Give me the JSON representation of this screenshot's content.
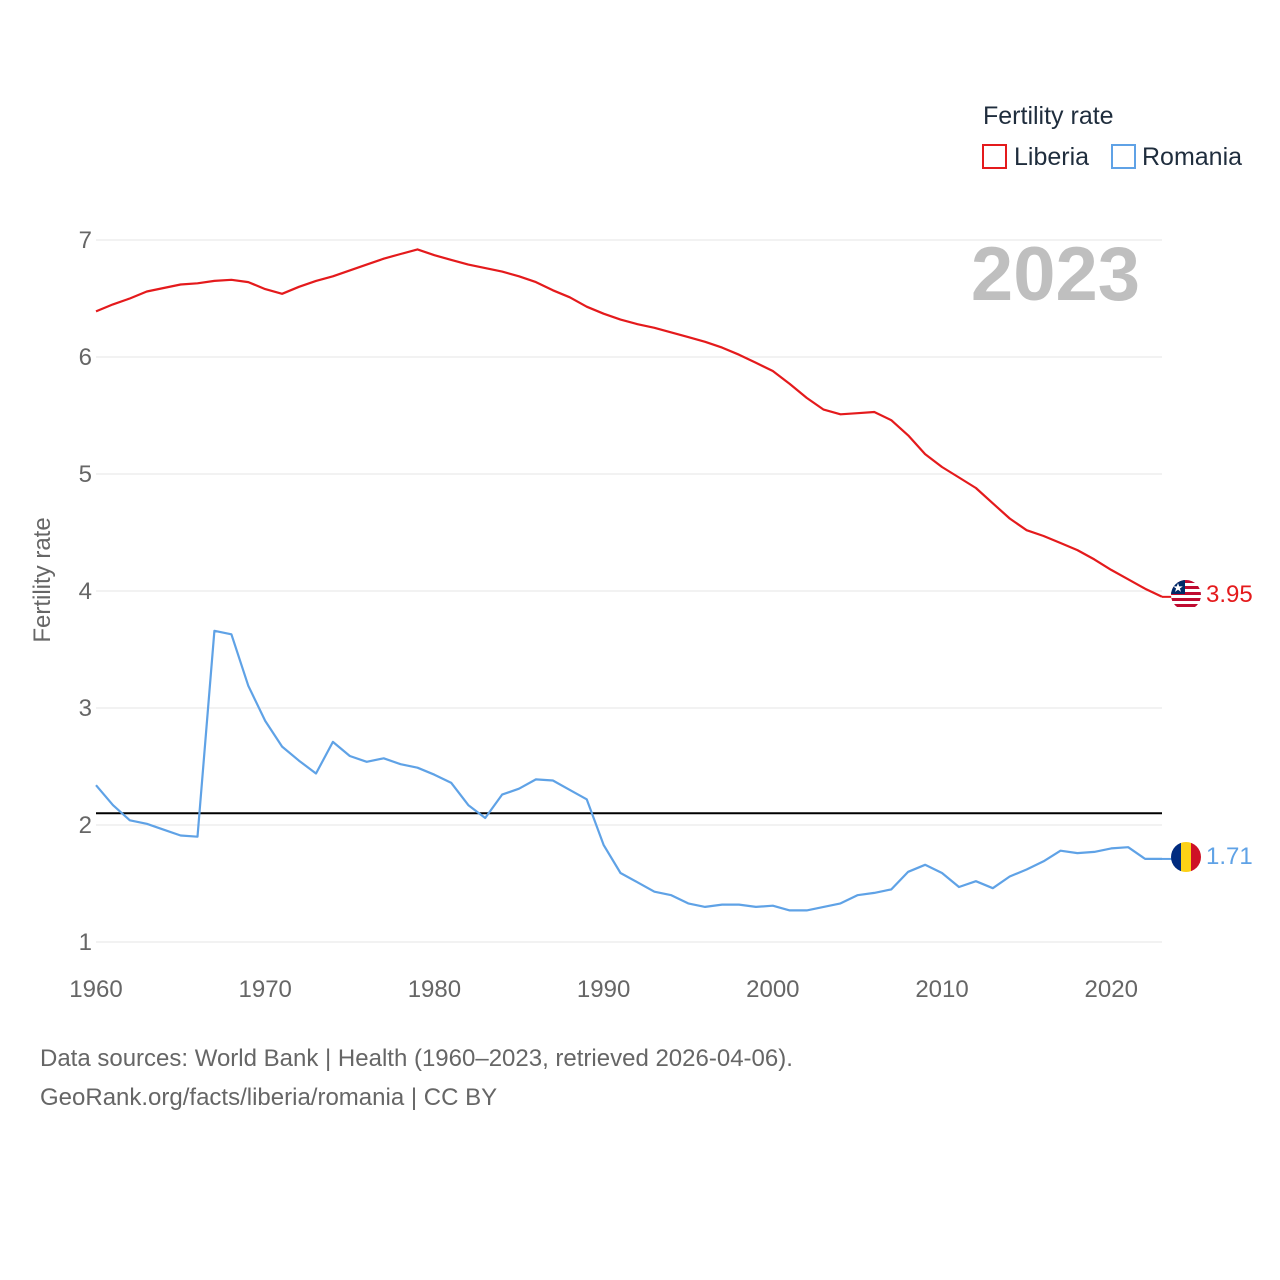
{
  "chart_data": {
    "type": "line",
    "ylabel": "Fertility rate",
    "legend_title": "Fertility rate",
    "legend_position": "top-right",
    "year_label": "2023",
    "ylim": [
      1,
      7
    ],
    "xlim": [
      1960,
      2023
    ],
    "yticks": [
      "1",
      "2",
      "3",
      "4",
      "5",
      "6",
      "7"
    ],
    "xticks": [
      "1960",
      "1970",
      "1980",
      "1990",
      "2000",
      "2010",
      "2020"
    ],
    "grid": true,
    "reference_line": 2.1,
    "x": [
      1960,
      1961,
      1962,
      1963,
      1964,
      1965,
      1966,
      1967,
      1968,
      1969,
      1970,
      1971,
      1972,
      1973,
      1974,
      1975,
      1976,
      1977,
      1978,
      1979,
      1980,
      1981,
      1982,
      1983,
      1984,
      1985,
      1986,
      1987,
      1988,
      1989,
      1990,
      1991,
      1992,
      1993,
      1994,
      1995,
      1996,
      1997,
      1998,
      1999,
      2000,
      2001,
      2002,
      2003,
      2004,
      2005,
      2006,
      2007,
      2008,
      2009,
      2010,
      2011,
      2012,
      2013,
      2014,
      2015,
      2016,
      2017,
      2018,
      2019,
      2020,
      2021,
      2022,
      2023
    ],
    "series": [
      {
        "name": "Liberia",
        "color": "#e41a1c",
        "end_label": "3.95",
        "values": [
          6.39,
          6.45,
          6.5,
          6.56,
          6.59,
          6.62,
          6.63,
          6.65,
          6.66,
          6.64,
          6.58,
          6.54,
          6.6,
          6.65,
          6.69,
          6.74,
          6.79,
          6.84,
          6.88,
          6.92,
          6.87,
          6.83,
          6.79,
          6.76,
          6.73,
          6.69,
          6.64,
          6.57,
          6.51,
          6.43,
          6.37,
          6.32,
          6.28,
          6.25,
          6.21,
          6.17,
          6.13,
          6.08,
          6.02,
          5.95,
          5.88,
          5.77,
          5.65,
          5.55,
          5.51,
          5.52,
          5.53,
          5.46,
          5.33,
          5.17,
          5.06,
          4.97,
          4.88,
          4.75,
          4.62,
          4.52,
          4.47,
          4.41,
          4.35,
          4.27,
          4.18,
          4.1,
          4.02,
          3.95
        ]
      },
      {
        "name": "Romania",
        "color": "#5fa2e6",
        "end_label": "1.71",
        "values": [
          2.34,
          2.17,
          2.04,
          2.01,
          1.96,
          1.91,
          1.9,
          3.66,
          3.63,
          3.19,
          2.89,
          2.67,
          2.55,
          2.44,
          2.71,
          2.59,
          2.54,
          2.57,
          2.52,
          2.49,
          2.43,
          2.36,
          2.17,
          2.06,
          2.26,
          2.31,
          2.39,
          2.38,
          2.3,
          2.22,
          1.83,
          1.59,
          1.51,
          1.43,
          1.4,
          1.33,
          1.3,
          1.32,
          1.32,
          1.3,
          1.31,
          1.27,
          1.27,
          1.3,
          1.33,
          1.4,
          1.42,
          1.45,
          1.6,
          1.66,
          1.59,
          1.47,
          1.52,
          1.46,
          1.56,
          1.62,
          1.69,
          1.78,
          1.76,
          1.77,
          1.8,
          1.81,
          1.71,
          1.71
        ]
      }
    ]
  },
  "footer": {
    "source_line1": "Data sources: World Bank | Health (1960–2023, retrieved 2026-04-06).",
    "source_line2": "GeoRank.org/facts/liberia/romania | CC BY"
  }
}
